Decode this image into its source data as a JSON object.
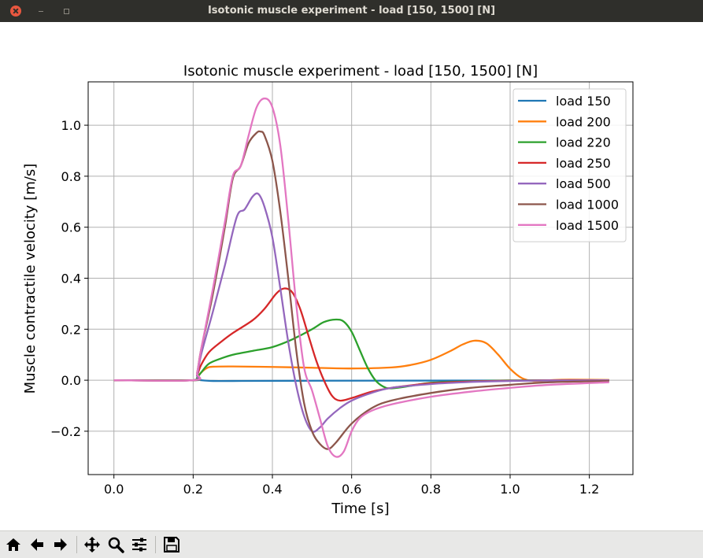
{
  "window": {
    "title": "Isotonic muscle experiment - load [150, 1500] [N]"
  },
  "toolbar": {
    "buttons": [
      {
        "name": "home-button",
        "icon": "home-icon"
      },
      {
        "name": "back-button",
        "icon": "arrow-left-icon"
      },
      {
        "name": "forward-button",
        "icon": "arrow-right-icon"
      },
      {
        "name": "pan-button",
        "icon": "move-icon"
      },
      {
        "name": "zoom-button",
        "icon": "magnifier-icon"
      },
      {
        "name": "configure-subplots-button",
        "icon": "sliders-icon"
      },
      {
        "name": "save-button",
        "icon": "floppy-disk-icon"
      }
    ]
  },
  "chart_data": {
    "type": "line",
    "title": "Isotonic muscle experiment - load [150, 1500] [N]",
    "xlabel": "Time [s]",
    "ylabel": "Muscle contractile velocity [m/s]",
    "xlim": [
      -0.065,
      1.31
    ],
    "ylim": [
      -0.37,
      1.17
    ],
    "xticks": [
      0.0,
      0.2,
      0.4,
      0.6,
      0.8,
      1.0,
      1.2
    ],
    "xtick_labels": [
      "0.0",
      "0.2",
      "0.4",
      "0.6",
      "0.8",
      "1.0",
      "1.2"
    ],
    "yticks": [
      -0.2,
      0.0,
      0.2,
      0.4,
      0.6,
      0.8,
      1.0
    ],
    "ytick_labels": [
      "−0.2",
      "0.0",
      "0.2",
      "0.4",
      "0.6",
      "0.8",
      "1.0"
    ],
    "grid": true,
    "legend_position": "top-right",
    "series": [
      {
        "name": "load 150",
        "color": "#1f77b4",
        "x": [
          0,
          0.2,
          0.205,
          0.21,
          0.22,
          0.25,
          0.3,
          0.5,
          1.25
        ],
        "y": [
          0,
          0,
          0.002,
          0.003,
          0.0,
          -0.003,
          -0.003,
          -0.002,
          -0.001
        ]
      },
      {
        "name": "load 200",
        "color": "#ff7f0e",
        "x": [
          0,
          0.2,
          0.21,
          0.22,
          0.235,
          0.25,
          0.3,
          0.4,
          0.5,
          0.6,
          0.7,
          0.75,
          0.8,
          0.85,
          0.88,
          0.91,
          0.94,
          0.97,
          1.0,
          1.03,
          1.06,
          1.1,
          1.15,
          1.25
        ],
        "y": [
          0,
          0,
          0.01,
          0.03,
          0.048,
          0.053,
          0.054,
          0.052,
          0.049,
          0.046,
          0.05,
          0.06,
          0.08,
          0.115,
          0.14,
          0.155,
          0.145,
          0.1,
          0.045,
          0.008,
          -0.003,
          0.0,
          0.002,
          0.001
        ]
      },
      {
        "name": "load 220",
        "color": "#2ca02c",
        "x": [
          0,
          0.2,
          0.21,
          0.22,
          0.24,
          0.27,
          0.3,
          0.35,
          0.4,
          0.45,
          0.5,
          0.53,
          0.56,
          0.58,
          0.6,
          0.62,
          0.64,
          0.66,
          0.68,
          0.7,
          0.75,
          0.8,
          0.9,
          1.0,
          1.1,
          1.25
        ],
        "y": [
          0,
          0,
          0.01,
          0.03,
          0.065,
          0.085,
          0.1,
          0.115,
          0.13,
          0.16,
          0.2,
          0.228,
          0.238,
          0.23,
          0.19,
          0.12,
          0.05,
          0.0,
          -0.025,
          -0.032,
          -0.022,
          -0.01,
          -0.004,
          -0.001,
          0.0,
          0.0
        ]
      },
      {
        "name": "load 250",
        "color": "#d62728",
        "x": [
          0,
          0.2,
          0.21,
          0.22,
          0.24,
          0.27,
          0.3,
          0.35,
          0.38,
          0.41,
          0.43,
          0.45,
          0.47,
          0.49,
          0.51,
          0.53,
          0.55,
          0.57,
          0.6,
          0.65,
          0.7,
          0.75,
          0.8,
          0.9,
          1.0,
          1.1,
          1.25
        ],
        "y": [
          0,
          0,
          0.02,
          0.06,
          0.11,
          0.15,
          0.185,
          0.235,
          0.28,
          0.34,
          0.36,
          0.345,
          0.28,
          0.18,
          0.08,
          0.0,
          -0.06,
          -0.08,
          -0.07,
          -0.045,
          -0.03,
          -0.02,
          -0.012,
          -0.005,
          -0.002,
          0.0,
          0.0
        ]
      },
      {
        "name": "load 500",
        "color": "#9467bd",
        "x": [
          0,
          0.2,
          0.21,
          0.22,
          0.25,
          0.28,
          0.31,
          0.33,
          0.35,
          0.365,
          0.38,
          0.4,
          0.42,
          0.44,
          0.46,
          0.48,
          0.5,
          0.52,
          0.54,
          0.57,
          0.6,
          0.65,
          0.7,
          0.8,
          0.9,
          1.0,
          1.1,
          1.25
        ],
        "y": [
          0,
          0,
          0.02,
          0.1,
          0.27,
          0.45,
          0.64,
          0.67,
          0.72,
          0.73,
          0.68,
          0.56,
          0.36,
          0.15,
          -0.02,
          -0.14,
          -0.2,
          -0.185,
          -0.15,
          -0.11,
          -0.08,
          -0.05,
          -0.03,
          -0.015,
          -0.007,
          -0.003,
          -0.001,
          0.0
        ]
      },
      {
        "name": "load 1000",
        "color": "#8c564b",
        "x": [
          0,
          0.2,
          0.21,
          0.22,
          0.25,
          0.28,
          0.3,
          0.32,
          0.34,
          0.36,
          0.37,
          0.38,
          0.4,
          0.42,
          0.44,
          0.46,
          0.48,
          0.5,
          0.52,
          0.54,
          0.56,
          0.6,
          0.65,
          0.7,
          0.8,
          0.9,
          1.0,
          1.1,
          1.25
        ],
        "y": [
          0,
          0,
          0.03,
          0.12,
          0.34,
          0.6,
          0.79,
          0.84,
          0.93,
          0.97,
          0.975,
          0.96,
          0.86,
          0.66,
          0.4,
          0.12,
          -0.09,
          -0.2,
          -0.25,
          -0.27,
          -0.245,
          -0.17,
          -0.11,
          -0.08,
          -0.05,
          -0.03,
          -0.018,
          -0.008,
          -0.003
        ]
      },
      {
        "name": "load 1500",
        "color": "#e377c2",
        "x": [
          0,
          0.2,
          0.21,
          0.22,
          0.25,
          0.28,
          0.3,
          0.32,
          0.34,
          0.36,
          0.38,
          0.4,
          0.42,
          0.44,
          0.46,
          0.48,
          0.5,
          0.52,
          0.54,
          0.56,
          0.58,
          0.6,
          0.62,
          0.65,
          0.7,
          0.8,
          0.9,
          1.0,
          1.1,
          1.25
        ],
        "y": [
          0,
          0,
          0.03,
          0.12,
          0.36,
          0.62,
          0.8,
          0.84,
          0.96,
          1.07,
          1.105,
          1.07,
          0.92,
          0.63,
          0.3,
          0.05,
          -0.04,
          -0.15,
          -0.26,
          -0.3,
          -0.28,
          -0.2,
          -0.15,
          -0.12,
          -0.095,
          -0.065,
          -0.045,
          -0.03,
          -0.018,
          -0.008
        ]
      }
    ]
  }
}
